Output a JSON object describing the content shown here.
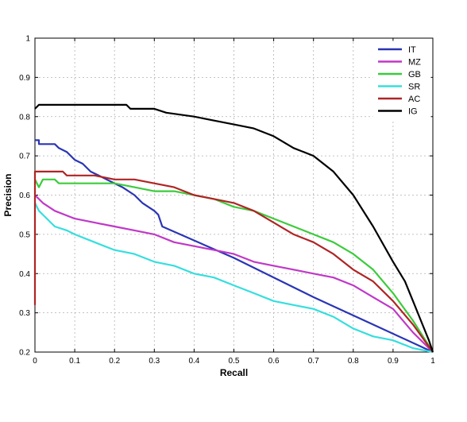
{
  "chart_data": {
    "type": "line",
    "title": "",
    "xlabel": "Recall",
    "ylabel": "Precision",
    "xlim": [
      0,
      1
    ],
    "ylim": [
      0.2,
      1
    ],
    "grid": true,
    "legend_position": "top-right",
    "x_ticks": [
      "0",
      "0.1",
      "0.2",
      "0.3",
      "0.4",
      "0.5",
      "0.6",
      "0.7",
      "0.8",
      "0.9",
      "1"
    ],
    "y_ticks": [
      "0.2",
      "0.3",
      "0.4",
      "0.5",
      "0.6",
      "0.7",
      "0.8",
      "0.9",
      "1"
    ],
    "series": [
      {
        "name": "IT",
        "color": "#2a35b5",
        "points": [
          [
            0.0,
            0.74
          ],
          [
            0.01,
            0.74
          ],
          [
            0.01,
            0.73
          ],
          [
            0.05,
            0.73
          ],
          [
            0.06,
            0.72
          ],
          [
            0.08,
            0.71
          ],
          [
            0.1,
            0.69
          ],
          [
            0.12,
            0.68
          ],
          [
            0.14,
            0.66
          ],
          [
            0.16,
            0.65
          ],
          [
            0.18,
            0.64
          ],
          [
            0.2,
            0.63
          ],
          [
            0.22,
            0.62
          ],
          [
            0.25,
            0.6
          ],
          [
            0.27,
            0.58
          ],
          [
            0.3,
            0.56
          ],
          [
            0.31,
            0.55
          ],
          [
            0.32,
            0.52
          ],
          [
            0.5,
            0.44
          ],
          [
            0.7,
            0.34
          ],
          [
            0.85,
            0.27
          ],
          [
            1.0,
            0.2
          ]
        ]
      },
      {
        "name": "MZ",
        "color": "#c038c8",
        "points": [
          [
            0.0,
            0.6
          ],
          [
            0.02,
            0.58
          ],
          [
            0.05,
            0.56
          ],
          [
            0.1,
            0.54
          ],
          [
            0.15,
            0.53
          ],
          [
            0.2,
            0.52
          ],
          [
            0.25,
            0.51
          ],
          [
            0.3,
            0.5
          ],
          [
            0.35,
            0.48
          ],
          [
            0.4,
            0.47
          ],
          [
            0.45,
            0.46
          ],
          [
            0.5,
            0.45
          ],
          [
            0.55,
            0.43
          ],
          [
            0.6,
            0.42
          ],
          [
            0.65,
            0.41
          ],
          [
            0.7,
            0.4
          ],
          [
            0.75,
            0.39
          ],
          [
            0.8,
            0.37
          ],
          [
            0.85,
            0.34
          ],
          [
            0.9,
            0.31
          ],
          [
            0.95,
            0.25
          ],
          [
            1.0,
            0.2
          ]
        ]
      },
      {
        "name": "GB",
        "color": "#3ccb3c",
        "points": [
          [
            0.0,
            0.64
          ],
          [
            0.01,
            0.62
          ],
          [
            0.02,
            0.64
          ],
          [
            0.05,
            0.64
          ],
          [
            0.06,
            0.63
          ],
          [
            0.1,
            0.63
          ],
          [
            0.2,
            0.63
          ],
          [
            0.25,
            0.62
          ],
          [
            0.3,
            0.61
          ],
          [
            0.35,
            0.61
          ],
          [
            0.4,
            0.6
          ],
          [
            0.45,
            0.59
          ],
          [
            0.5,
            0.57
          ],
          [
            0.55,
            0.56
          ],
          [
            0.6,
            0.54
          ],
          [
            0.65,
            0.52
          ],
          [
            0.7,
            0.5
          ],
          [
            0.75,
            0.48
          ],
          [
            0.8,
            0.45
          ],
          [
            0.85,
            0.41
          ],
          [
            0.9,
            0.35
          ],
          [
            0.95,
            0.28
          ],
          [
            1.0,
            0.2
          ]
        ]
      },
      {
        "name": "SR",
        "color": "#36dede",
        "points": [
          [
            0.0,
            0.58
          ],
          [
            0.01,
            0.56
          ],
          [
            0.03,
            0.54
          ],
          [
            0.05,
            0.52
          ],
          [
            0.08,
            0.51
          ],
          [
            0.1,
            0.5
          ],
          [
            0.15,
            0.48
          ],
          [
            0.2,
            0.46
          ],
          [
            0.25,
            0.45
          ],
          [
            0.3,
            0.43
          ],
          [
            0.35,
            0.42
          ],
          [
            0.4,
            0.4
          ],
          [
            0.45,
            0.39
          ],
          [
            0.5,
            0.37
          ],
          [
            0.55,
            0.35
          ],
          [
            0.6,
            0.33
          ],
          [
            0.65,
            0.32
          ],
          [
            0.7,
            0.31
          ],
          [
            0.75,
            0.29
          ],
          [
            0.8,
            0.26
          ],
          [
            0.85,
            0.24
          ],
          [
            0.9,
            0.23
          ],
          [
            0.95,
            0.21
          ],
          [
            1.0,
            0.2
          ]
        ]
      },
      {
        "name": "AC",
        "color": "#b02424",
        "points": [
          [
            0.0,
            0.32
          ],
          [
            0.0,
            0.66
          ],
          [
            0.07,
            0.66
          ],
          [
            0.08,
            0.65
          ],
          [
            0.15,
            0.65
          ],
          [
            0.2,
            0.64
          ],
          [
            0.25,
            0.64
          ],
          [
            0.3,
            0.63
          ],
          [
            0.35,
            0.62
          ],
          [
            0.4,
            0.6
          ],
          [
            0.45,
            0.59
          ],
          [
            0.5,
            0.58
          ],
          [
            0.55,
            0.56
          ],
          [
            0.6,
            0.53
          ],
          [
            0.65,
            0.5
          ],
          [
            0.7,
            0.48
          ],
          [
            0.75,
            0.45
          ],
          [
            0.8,
            0.41
          ],
          [
            0.85,
            0.38
          ],
          [
            0.9,
            0.33
          ],
          [
            0.95,
            0.27
          ],
          [
            1.0,
            0.2
          ]
        ]
      },
      {
        "name": "IG",
        "color": "#000000",
        "points": [
          [
            0.0,
            0.82
          ],
          [
            0.01,
            0.83
          ],
          [
            0.1,
            0.83
          ],
          [
            0.15,
            0.83
          ],
          [
            0.23,
            0.83
          ],
          [
            0.24,
            0.82
          ],
          [
            0.3,
            0.82
          ],
          [
            0.33,
            0.81
          ],
          [
            0.4,
            0.8
          ],
          [
            0.45,
            0.79
          ],
          [
            0.5,
            0.78
          ],
          [
            0.55,
            0.77
          ],
          [
            0.6,
            0.75
          ],
          [
            0.65,
            0.72
          ],
          [
            0.7,
            0.7
          ],
          [
            0.75,
            0.66
          ],
          [
            0.8,
            0.6
          ],
          [
            0.85,
            0.52
          ],
          [
            0.9,
            0.43
          ],
          [
            0.93,
            0.38
          ],
          [
            0.95,
            0.33
          ],
          [
            0.97,
            0.28
          ],
          [
            0.99,
            0.23
          ],
          [
            1.0,
            0.2
          ]
        ]
      }
    ]
  }
}
